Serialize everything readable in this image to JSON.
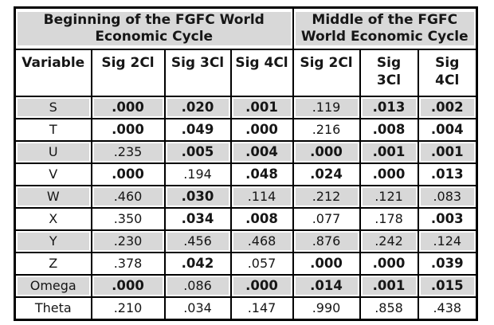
{
  "table": {
    "group_headers": [
      {
        "label": "Beginning of the FGFC World Economic Cycle",
        "colspan": 4
      },
      {
        "label": "Middle of the FGFC World Economic Cycle",
        "colspan": 3
      }
    ],
    "column_headers": [
      "Variable",
      "Sig 2Cl",
      "Sig 3Cl",
      "Sig 4Cl",
      "Sig 2Cl",
      "Sig\n3Cl",
      "Sig\n4Cl"
    ],
    "rows": [
      {
        "variable": "S",
        "values": [
          ".000",
          ".020",
          ".001",
          ".119",
          ".013",
          ".002"
        ],
        "bold": [
          true,
          true,
          true,
          false,
          true,
          true
        ]
      },
      {
        "variable": "T",
        "values": [
          ".000",
          ".049",
          ".000",
          ".216",
          ".008",
          ".004"
        ],
        "bold": [
          true,
          true,
          true,
          false,
          true,
          true
        ]
      },
      {
        "variable": "U",
        "values": [
          ".235",
          ".005",
          ".004",
          ".000",
          ".001",
          ".001"
        ],
        "bold": [
          false,
          true,
          true,
          true,
          true,
          true
        ]
      },
      {
        "variable": "V",
        "values": [
          ".000",
          ".194",
          ".048",
          ".024",
          ".000",
          ".013"
        ],
        "bold": [
          true,
          false,
          true,
          true,
          true,
          true
        ]
      },
      {
        "variable": "W",
        "values": [
          ".460",
          ".030",
          ".114",
          ".212",
          ".121",
          ".083"
        ],
        "bold": [
          false,
          true,
          false,
          false,
          false,
          false
        ]
      },
      {
        "variable": "X",
        "values": [
          ".350",
          ".034",
          ".008",
          ".077",
          ".178",
          ".003"
        ],
        "bold": [
          false,
          true,
          true,
          false,
          false,
          true
        ]
      },
      {
        "variable": "Y",
        "values": [
          ".230",
          ".456",
          ".468",
          ".876",
          ".242",
          ".124"
        ],
        "bold": [
          false,
          false,
          false,
          false,
          false,
          false
        ]
      },
      {
        "variable": "Z",
        "values": [
          ".378",
          ".042",
          ".057",
          ".000",
          ".000",
          ".039"
        ],
        "bold": [
          false,
          true,
          false,
          true,
          true,
          true
        ]
      },
      {
        "variable": "Omega",
        "values": [
          ".000",
          ".086",
          ".000",
          ".014",
          ".001",
          ".015"
        ],
        "bold": [
          true,
          false,
          true,
          true,
          true,
          true
        ]
      },
      {
        "variable": "Theta",
        "values": [
          ".210",
          ".034",
          ".147",
          ".990",
          ".858",
          ".438"
        ],
        "bold": [
          false,
          false,
          false,
          false,
          false,
          false
        ]
      }
    ]
  },
  "colors": {
    "shaded_fill": "#d8d8d8",
    "border": "#000000",
    "text": "#161616"
  }
}
